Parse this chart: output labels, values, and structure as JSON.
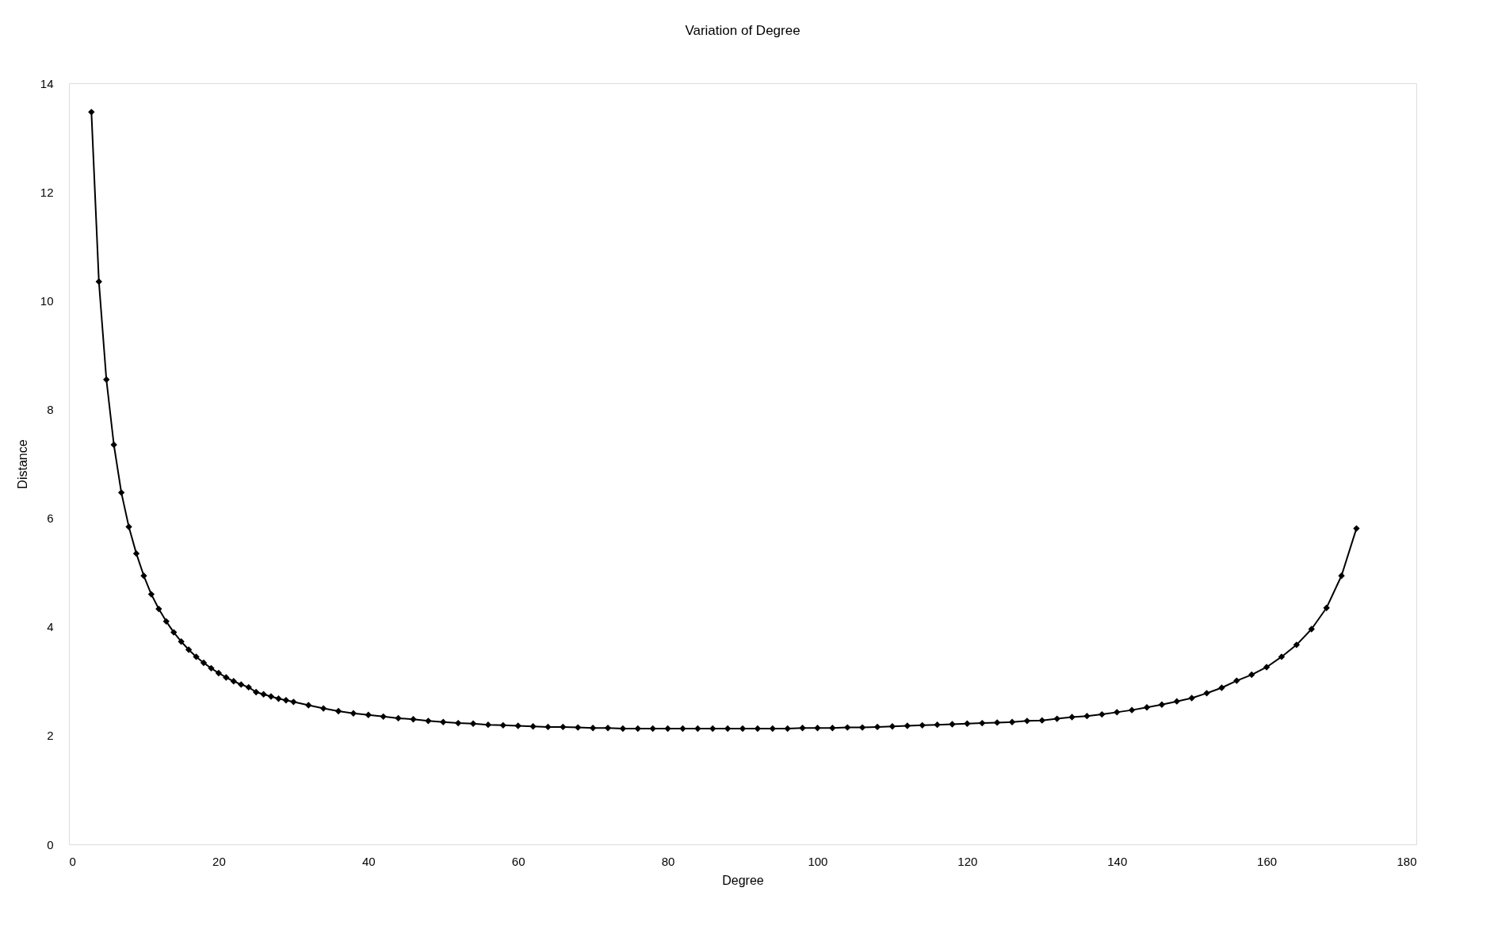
{
  "chart_data": {
    "type": "line",
    "title": "Variation of Degree",
    "xlabel": "Degree",
    "ylabel": "Distance",
    "xlim": [
      0,
      180
    ],
    "xticks": [
      0,
      20,
      40,
      60,
      80,
      100,
      120,
      140,
      160,
      180
    ],
    "ylim": [
      0,
      14
    ],
    "yticks": [
      0,
      2,
      4,
      6,
      8,
      10,
      12,
      14
    ],
    "grid": false,
    "marker": "diamond",
    "line_style": "solid",
    "series": [
      {
        "color": "#000000",
        "x": [
          3,
          4,
          5,
          6,
          7,
          8,
          9,
          10,
          11,
          12,
          13,
          14,
          15,
          16,
          17,
          18,
          19,
          20,
          21,
          22,
          23,
          24,
          25,
          26,
          27,
          28,
          29,
          30,
          32,
          34,
          36,
          38,
          40,
          42,
          44,
          46,
          48,
          50,
          52,
          54,
          56,
          58,
          60,
          62,
          64,
          66,
          68,
          70,
          72,
          74,
          76,
          78,
          80,
          82,
          84,
          86,
          88,
          90,
          92,
          94,
          96,
          98,
          100,
          102,
          104,
          106,
          108,
          110,
          112,
          114,
          116,
          118,
          120,
          122,
          124,
          126,
          128,
          130,
          132,
          134,
          136,
          138,
          140,
          142,
          144,
          146,
          148,
          150,
          152,
          154,
          156,
          158,
          160,
          162,
          164,
          166,
          168,
          170,
          172
        ],
        "values": [
          13.47,
          10.35,
          8.55,
          7.35,
          6.47,
          5.84,
          5.35,
          4.94,
          4.6,
          4.33,
          4.1,
          3.9,
          3.73,
          3.58,
          3.45,
          3.34,
          3.24,
          3.15,
          3.07,
          3.0,
          2.94,
          2.89,
          2.8,
          2.76,
          2.72,
          2.68,
          2.65,
          2.62,
          2.56,
          2.5,
          2.45,
          2.41,
          2.38,
          2.35,
          2.32,
          2.3,
          2.27,
          2.25,
          2.23,
          2.22,
          2.2,
          2.19,
          2.18,
          2.17,
          2.16,
          2.16,
          2.15,
          2.14,
          2.14,
          2.13,
          2.13,
          2.13,
          2.13,
          2.13,
          2.13,
          2.13,
          2.13,
          2.13,
          2.13,
          2.13,
          2.13,
          2.14,
          2.14,
          2.14,
          2.15,
          2.15,
          2.16,
          2.17,
          2.18,
          2.19,
          2.2,
          2.21,
          2.22,
          2.23,
          2.24,
          2.25,
          2.27,
          2.28,
          2.31,
          2.34,
          2.36,
          2.39,
          2.43,
          2.47,
          2.52,
          2.57,
          2.63,
          2.69,
          2.78,
          2.88,
          3.01,
          3.12,
          3.26,
          3.45,
          3.67,
          3.96,
          4.35,
          4.94,
          5.81
        ]
      }
    ]
  }
}
